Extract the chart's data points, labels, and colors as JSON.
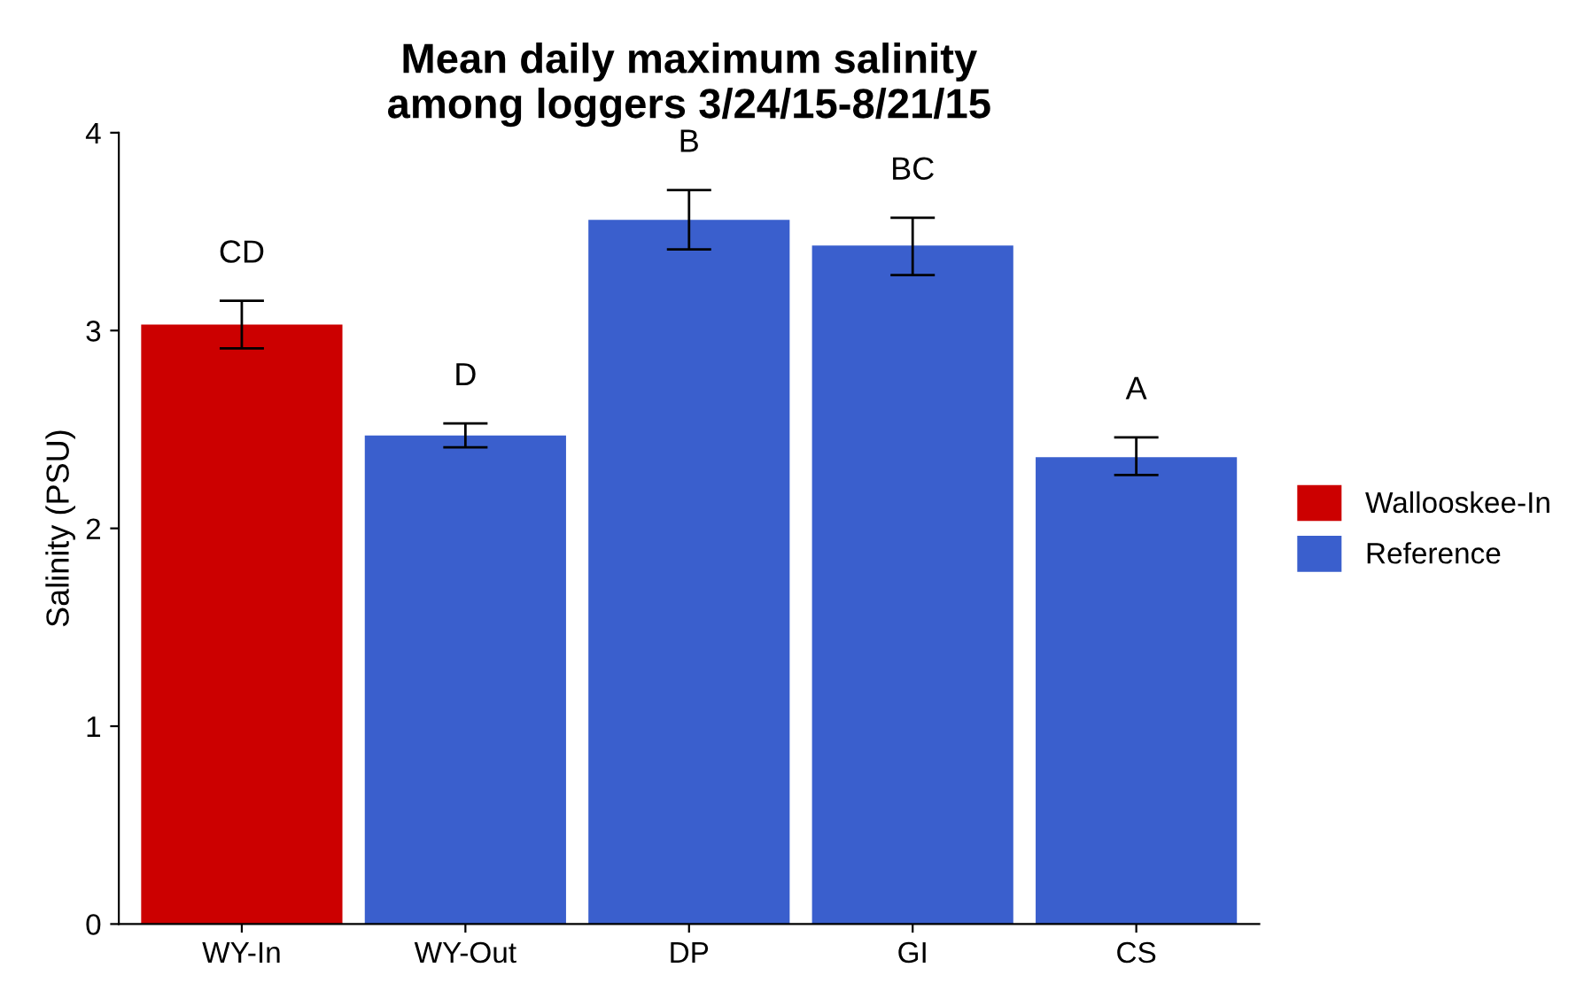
{
  "chart_data": {
    "type": "bar",
    "title": "Mean daily maximum salinity\namong loggers 3/24/15-8/21/15",
    "ylabel": "Salinity (PSU)",
    "categories": [
      "WY-In",
      "WY-Out",
      "DP",
      "GI",
      "CS"
    ],
    "series": [
      {
        "name": "Wallooskee-In",
        "color": "#cc0000",
        "values": [
          3.03,
          null,
          null,
          null,
          null
        ],
        "errors": [
          [
            2.91,
            3.15
          ],
          null,
          null,
          null,
          null
        ]
      },
      {
        "name": "Reference",
        "color": "#3a5fcd",
        "values": [
          null,
          2.47,
          3.56,
          3.43,
          2.36
        ],
        "errors": [
          null,
          [
            2.41,
            2.53
          ],
          [
            3.41,
            3.71
          ],
          [
            3.28,
            3.57
          ],
          [
            2.27,
            2.46
          ]
        ]
      }
    ],
    "ylim": [
      0,
      4
    ],
    "yticks": [
      0,
      1,
      2,
      3,
      4
    ],
    "grid": false,
    "legend": "right",
    "annotations": [
      "CD",
      "D",
      "B",
      "BC",
      "A"
    ]
  }
}
